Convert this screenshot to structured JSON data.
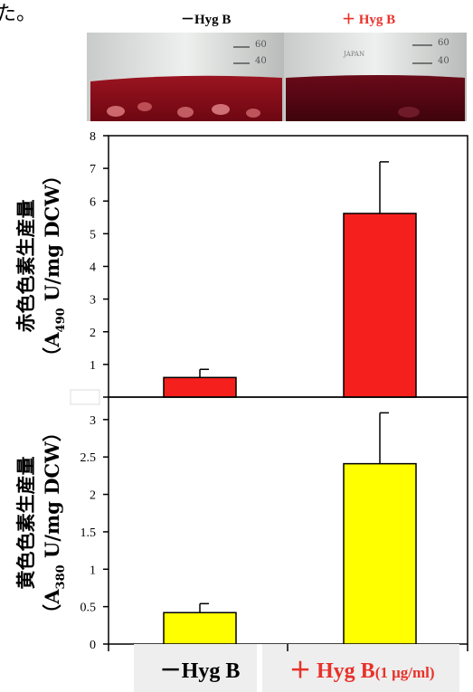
{
  "corner_char": "た。",
  "photo": {
    "label_minus": "－Hyg B",
    "label_plus": "＋ Hyg B",
    "label_plus_color": "#e8312a",
    "flask_marks_left": [
      "60",
      "40"
    ],
    "flask_marks_right": [
      "60",
      "40"
    ],
    "flask_text_right": "JAPAN"
  },
  "categories": {
    "minus": "－Hyg B",
    "plus": "＋ Hyg B",
    "plus_suffix": "(1 μg/ml)",
    "plus_color": "#e8312a"
  },
  "chart_data": [
    {
      "type": "bar",
      "ylabel": "赤色色素生産量",
      "ylabel_unit_prefix": "（A",
      "ylabel_unit_sub": "490",
      "ylabel_unit_suffix": " U/mg DCW）",
      "ylim": [
        0,
        8
      ],
      "yticks": [
        "",
        "1",
        "2",
        "3",
        "4",
        "5",
        "6",
        "7",
        "8"
      ],
      "categories": [
        "－Hyg B",
        "＋ Hyg B (1 μg/ml)"
      ],
      "values": [
        0.6,
        5.62
      ],
      "errors": [
        0.25,
        1.58
      ],
      "color": "#f5201d"
    },
    {
      "type": "bar",
      "ylabel": "黄色色素生産量",
      "ylabel_unit_prefix": "（A",
      "ylabel_unit_sub": "380",
      "ylabel_unit_suffix": " U/mg DCW）",
      "ylim": [
        0,
        3.3
      ],
      "yticks": [
        "0",
        "0.5",
        "1",
        "1.5",
        "2",
        "2.5",
        "3"
      ],
      "categories": [
        "－Hyg B",
        "＋ Hyg B (1 μg/ml)"
      ],
      "values": [
        0.42,
        2.41
      ],
      "errors": [
        0.12,
        0.68
      ],
      "color": "#ffff00"
    }
  ]
}
